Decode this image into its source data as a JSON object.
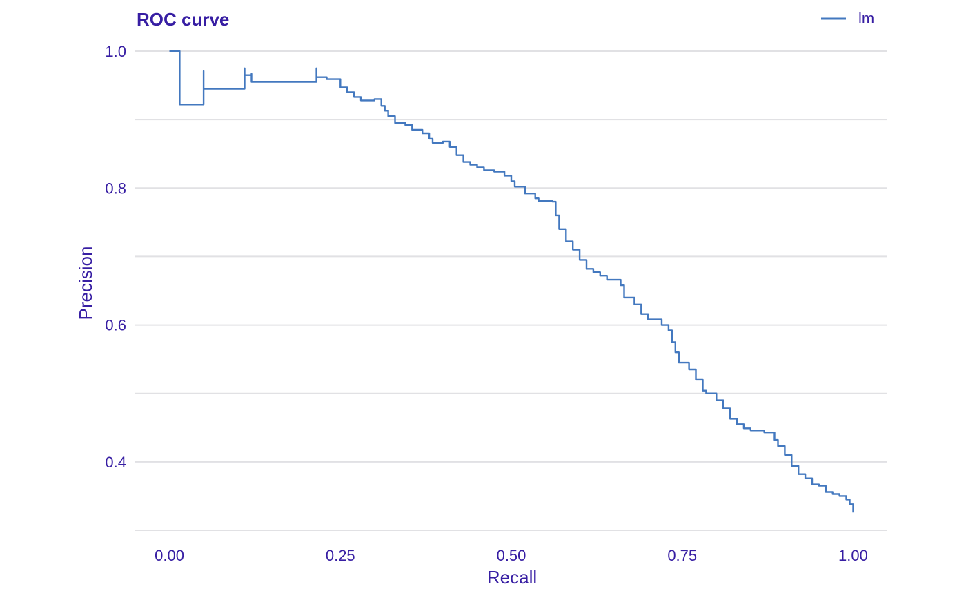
{
  "chart_data": {
    "type": "line",
    "title": "ROC curve",
    "xlabel": "Recall",
    "ylabel": "Precision",
    "xlim": [
      -0.05,
      1.05
    ],
    "ylim": [
      0.3,
      1.0
    ],
    "x_ticks": [
      0,
      0.25,
      0.5,
      0.75,
      1
    ],
    "x_tick_labels": [
      "0.00",
      "0.25",
      "0.50",
      "0.75",
      "1.00"
    ],
    "y_ticks": [
      0.4,
      0.6,
      0.8,
      1.0
    ],
    "y_tick_labels": [
      "0.4",
      "0.6",
      "0.8",
      "1.0"
    ],
    "y_minor_grid": [
      0.3,
      0.5,
      0.7,
      0.9
    ],
    "grid": "horizontal",
    "legend_position": "top-right",
    "series": [
      {
        "name": "lm",
        "color": "#4378bf",
        "x": [
          0,
          0.015,
          0.015,
          0.05,
          0.05,
          0.11,
          0.11,
          0.12,
          0.12,
          0.215,
          0.215,
          0.23,
          0.23,
          0.25,
          0.26,
          0.27,
          0.28,
          0.3,
          0.31,
          0.315,
          0.32,
          0.33,
          0.345,
          0.355,
          0.37,
          0.38,
          0.385,
          0.4,
          0.41,
          0.42,
          0.43,
          0.44,
          0.45,
          0.46,
          0.475,
          0.49,
          0.5,
          0.505,
          0.52,
          0.535,
          0.54,
          0.56,
          0.565,
          0.57,
          0.58,
          0.59,
          0.6,
          0.61,
          0.62,
          0.63,
          0.64,
          0.66,
          0.665,
          0.68,
          0.69,
          0.7,
          0.72,
          0.73,
          0.735,
          0.74,
          0.745,
          0.76,
          0.77,
          0.78,
          0.785,
          0.8,
          0.81,
          0.82,
          0.83,
          0.84,
          0.85,
          0.87,
          0.885,
          0.89,
          0.9,
          0.91,
          0.92,
          0.93,
          0.94,
          0.95,
          0.96,
          0.97,
          0.98,
          0.99,
          0.995,
          1.0
        ],
        "y": [
          1.0,
          1.0,
          0.922,
          0.971,
          0.945,
          0.975,
          0.965,
          0.967,
          0.955,
          0.975,
          0.962,
          0.962,
          0.959,
          0.947,
          0.94,
          0.933,
          0.928,
          0.93,
          0.92,
          0.913,
          0.905,
          0.895,
          0.892,
          0.885,
          0.88,
          0.872,
          0.866,
          0.868,
          0.86,
          0.848,
          0.838,
          0.834,
          0.83,
          0.826,
          0.824,
          0.818,
          0.81,
          0.802,
          0.792,
          0.785,
          0.781,
          0.78,
          0.76,
          0.74,
          0.722,
          0.71,
          0.695,
          0.682,
          0.677,
          0.672,
          0.666,
          0.658,
          0.64,
          0.63,
          0.616,
          0.608,
          0.6,
          0.592,
          0.575,
          0.56,
          0.545,
          0.535,
          0.52,
          0.504,
          0.5,
          0.49,
          0.478,
          0.463,
          0.455,
          0.449,
          0.446,
          0.443,
          0.432,
          0.423,
          0.41,
          0.394,
          0.382,
          0.376,
          0.367,
          0.365,
          0.356,
          0.353,
          0.35,
          0.345,
          0.338,
          0.326
        ]
      }
    ]
  }
}
